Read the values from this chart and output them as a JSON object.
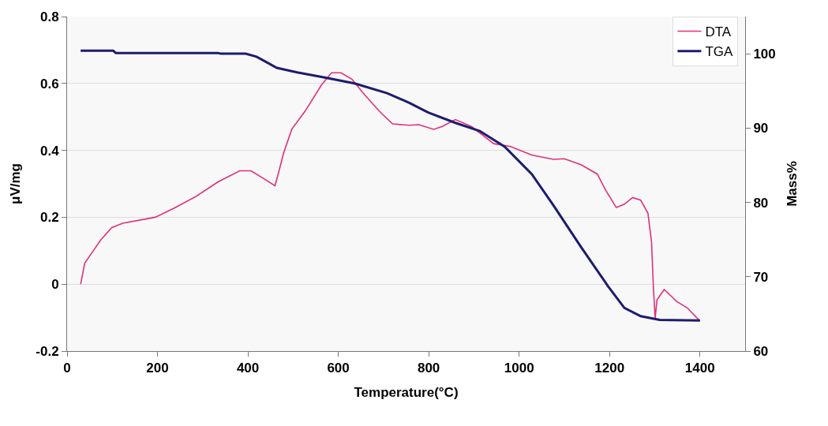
{
  "chart_data": {
    "type": "line",
    "xlabel": "Temperature(°C)",
    "ylabel": "μV/mg",
    "y2label": "Mass%",
    "xlim": [
      0,
      1500
    ],
    "xticks": [
      0,
      200,
      400,
      600,
      800,
      1000,
      1200,
      1400
    ],
    "ylim": [
      -0.2,
      0.8
    ],
    "yticks": [
      -0.2,
      0,
      0.2,
      0.4,
      0.6,
      0.8
    ],
    "y2lim": [
      60,
      105
    ],
    "y2ticks": [
      60,
      70,
      80,
      90,
      100
    ],
    "grid": "y",
    "legend": "top right",
    "marker": "none",
    "line_style": "solid",
    "series": [
      {
        "name": "DTA",
        "color": "#e0307a",
        "x": [
          30,
          39,
          57,
          75,
          99,
          123,
          195,
          238,
          286,
          334,
          382,
          407,
          437,
          460,
          467,
          479,
          497,
          527,
          563,
          585,
          606,
          630,
          654,
          690,
          720,
          757,
          778,
          811,
          829,
          859,
          895,
          944,
          980,
          1028,
          1076,
          1100,
          1137,
          1173,
          1191,
          1215,
          1233,
          1251,
          1269,
          1285,
          1293,
          1297,
          1301,
          1305,
          1321,
          1339,
          1348,
          1372,
          1400
        ],
        "values": [
          0.0,
          0.063,
          0.098,
          0.133,
          0.169,
          0.182,
          0.2,
          0.228,
          0.263,
          0.306,
          0.339,
          0.339,
          0.314,
          0.294,
          0.329,
          0.392,
          0.463,
          0.518,
          0.596,
          0.632,
          0.632,
          0.613,
          0.573,
          0.518,
          0.479,
          0.475,
          0.477,
          0.463,
          0.471,
          0.492,
          0.471,
          0.42,
          0.412,
          0.386,
          0.373,
          0.375,
          0.357,
          0.329,
          0.282,
          0.229,
          0.239,
          0.259,
          0.251,
          0.212,
          0.126,
          -0.008,
          -0.102,
          -0.047,
          -0.016,
          -0.039,
          -0.051,
          -0.071,
          -0.11
        ]
      },
      {
        "name": "TGA",
        "color": "#1c1c6e",
        "axis": "y2",
        "x": [
          30,
          102,
          108,
          334,
          340,
          395,
          419,
          443,
          464,
          509,
          570,
          636,
          708,
          757,
          799,
          859,
          913,
          968,
          1028,
          1076,
          1137,
          1197,
          1233,
          1269,
          1311,
          1400
        ],
        "values": [
          100.4,
          100.4,
          100.1,
          100.1,
          100.0,
          100.0,
          99.6,
          98.8,
          98.1,
          97.5,
          96.8,
          96.0,
          94.7,
          93.4,
          92.1,
          90.7,
          89.6,
          87.5,
          83.8,
          79.6,
          74.0,
          68.7,
          65.8,
          64.7,
          64.2,
          64.1
        ]
      }
    ]
  }
}
